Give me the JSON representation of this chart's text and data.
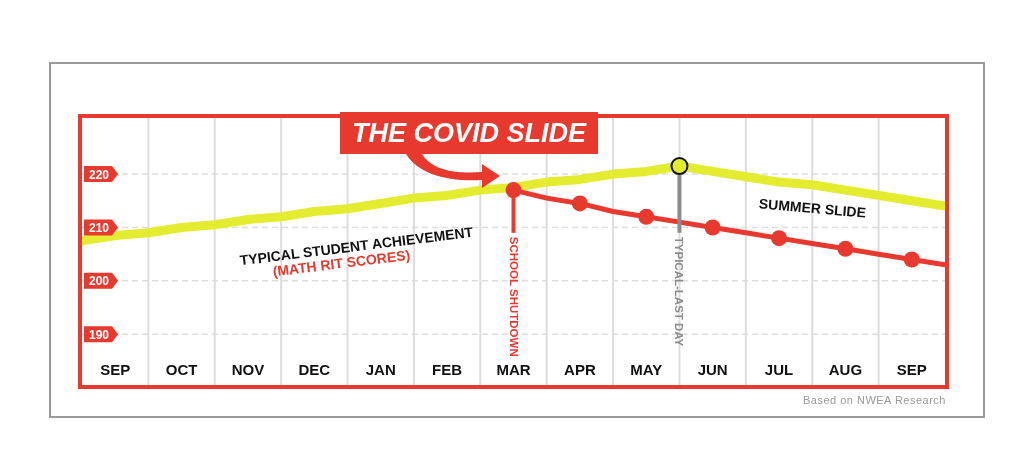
{
  "chart_data": {
    "type": "line",
    "title": "THE COVID SLIDE",
    "categories": [
      null,
      "SEP",
      null,
      "OCT",
      null,
      "NOV",
      null,
      "DEC",
      null,
      "JAN",
      null,
      "FEB",
      null,
      "MAR",
      null,
      "APR",
      null,
      "MAY",
      null,
      "JUN",
      null,
      "JUL",
      null,
      "AUG",
      null,
      "SEP",
      null
    ],
    "ylim": [
      180.5,
      230.5
    ],
    "yticks": [
      190,
      200,
      210,
      220
    ],
    "grid": true,
    "series": [
      {
        "color": "#e3ec2f",
        "marker": "none",
        "values": [
          207.5,
          208.5,
          209,
          210,
          210.5,
          211.5,
          212,
          213,
          213.5,
          214.5,
          215.5,
          216,
          217,
          217.5,
          218.5,
          219,
          220,
          220.5,
          221.5,
          220.5,
          219.5,
          218.5,
          218,
          217,
          216,
          215,
          214
        ]
      },
      {
        "color": "#e8392f",
        "marker": "none",
        "values": [
          null,
          null,
          null,
          null,
          null,
          null,
          null,
          null,
          null,
          null,
          null,
          null,
          null,
          217,
          215.5,
          214.5,
          213,
          212,
          211,
          210,
          209,
          208,
          207,
          206,
          205,
          204,
          203
        ]
      },
      {
        "type": "scatter",
        "color": "#e8392f",
        "marker": "circle",
        "values": [
          null,
          null,
          null,
          null,
          null,
          null,
          null,
          null,
          null,
          null,
          null,
          null,
          null,
          217,
          null,
          214.5,
          null,
          212,
          null,
          210,
          null,
          208,
          null,
          206,
          null,
          204,
          null
        ]
      },
      {
        "type": "scatter",
        "color": "#e3ec2f",
        "marker": "circle",
        "values": [
          null,
          null,
          null,
          null,
          null,
          null,
          null,
          null,
          null,
          null,
          null,
          null,
          null,
          null,
          null,
          null,
          null,
          null,
          221.5,
          null,
          null,
          null,
          null,
          null,
          null,
          null,
          null
        ]
      }
    ],
    "ref_lines": [
      {
        "axis": "x",
        "value": "MAR",
        "label": "SCHOOL SHUTDOWN",
        "color": "#e8392f"
      }
    ],
    "annotations": [
      "TYPICAL STUDENT ACHIEVEMENT",
      "(MATH RIT SCORES)",
      "SUMMER SLIDE",
      {
        "text": "TYPICAL-LAST DAY",
        "y": 221.5
      },
      "Based on NWEA Research"
    ]
  }
}
